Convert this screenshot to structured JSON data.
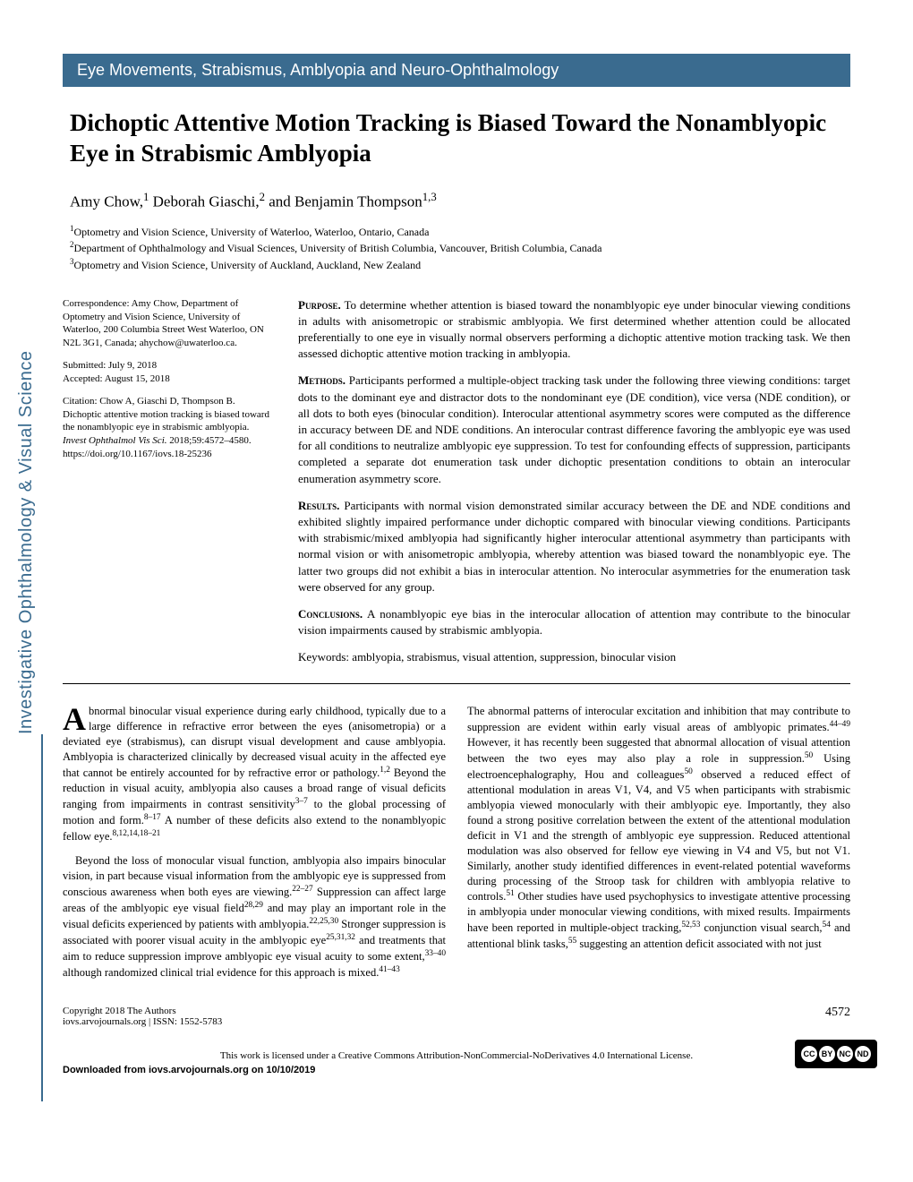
{
  "section_header": "Eye Movements, Strabismus, Amblyopia and Neuro-Ophthalmology",
  "title": "Dichoptic Attentive Motion Tracking is Biased Toward the Nonamblyopic Eye in Strabismic Amblyopia",
  "authors_html": "Amy Chow,<sup>1</sup> Deborah Giaschi,<sup>2</sup> and Benjamin Thompson<sup>1,3</sup>",
  "affiliations": [
    "<sup>1</sup>Optometry and Vision Science, University of Waterloo, Waterloo, Ontario, Canada",
    "<sup>2</sup>Department of Ophthalmology and Visual Sciences, University of British Columbia, Vancouver, British Columbia, Canada",
    "<sup>3</sup>Optometry and Vision Science, University of Auckland, Auckland, New Zealand"
  ],
  "correspondence": "Correspondence: Amy Chow, Department of Optometry and Vision Science, University of Waterloo, 200 Columbia Street West Waterloo, ON N2L 3G1, Canada; ahychow@uwaterloo.ca.",
  "submitted": "Submitted: July 9, 2018",
  "accepted": "Accepted: August 15, 2018",
  "citation": "Citation: Chow A, Giaschi D, Thompson B. Dichoptic attentive motion tracking is biased toward the nonamblyopic eye in strabismic amblyopia. <i>Invest Ophthalmol Vis Sci.</i> 2018;59:4572–4580. https://doi.org/10.1167/iovs.18-25236",
  "abstract": {
    "purpose": "To determine whether attention is biased toward the nonamblyopic eye under binocular viewing conditions in adults with anisometropic or strabismic amblyopia. We first determined whether attention could be allocated preferentially to one eye in visually normal observers performing a dichoptic attentive motion tracking task. We then assessed dichoptic attentive motion tracking in amblyopia.",
    "methods": "Participants performed a multiple-object tracking task under the following three viewing conditions: target dots to the dominant eye and distractor dots to the nondominant eye (DE condition), vice versa (NDE condition), or all dots to both eyes (binocular condition). Interocular attentional asymmetry scores were computed as the difference in accuracy between DE and NDE conditions. An interocular contrast difference favoring the amblyopic eye was used for all conditions to neutralize amblyopic eye suppression. To test for confounding effects of suppression, participants completed a separate dot enumeration task under dichoptic presentation conditions to obtain an interocular enumeration asymmetry score.",
    "results": "Participants with normal vision demonstrated similar accuracy between the DE and NDE conditions and exhibited slightly impaired performance under dichoptic compared with binocular viewing conditions. Participants with strabismic/mixed amblyopia had significantly higher interocular attentional asymmetry than participants with normal vision or with anisometropic amblyopia, whereby attention was biased toward the nonamblyopic eye. The latter two groups did not exhibit a bias in interocular attention. No interocular asymmetries for the enumeration task were observed for any group.",
    "conclusions": "A nonamblyopic eye bias in the interocular allocation of attention may contribute to the binocular vision impairments caused by strabismic amblyopia."
  },
  "keywords": "Keywords: amblyopia, strabismus, visual attention, suppression, binocular vision",
  "body": {
    "col1_p1": "bnormal binocular visual experience during early childhood, typically due to a large difference in refractive error between the eyes (anisometropia) or a deviated eye (strabismus), can disrupt visual development and cause amblyopia. Amblyopia is characterized clinically by decreased visual acuity in the affected eye that cannot be entirely accounted for by refractive error or pathology.<sup>1,2</sup> Beyond the reduction in visual acuity, amblyopia also causes a broad range of visual deficits ranging from impairments in contrast sensitivity<sup>3–7</sup> to the global processing of motion and form.<sup>8–17</sup> A number of these deficits also extend to the nonamblyopic fellow eye.<sup>8,12,14,18–21</sup>",
    "col1_p2": "Beyond the loss of monocular visual function, amblyopia also impairs binocular vision, in part because visual information from the amblyopic eye is suppressed from conscious awareness when both eyes are viewing.<sup>22–27</sup> Suppression can affect large areas of the amblyopic eye visual field<sup>28,29</sup> and may play an important role in the visual deficits experienced by patients with amblyopia.<sup>22,25,30</sup> Stronger suppression is associated with poorer visual acuity in the amblyopic eye<sup>25,31,32</sup> and treatments that aim to reduce suppression improve amblyopic eye visual acuity to some extent,<sup>33–40</sup> although randomized clinical trial evidence for this approach is mixed.<sup>41–43</sup>",
    "col2_p1": "The abnormal patterns of interocular excitation and inhibition that may contribute to suppression are evident within early visual areas of amblyopic primates.<sup>44–49</sup> However, it has recently been suggested that abnormal allocation of visual attention between the two eyes may also play a role in suppression.<sup>50</sup> Using electroencephalography, Hou and colleagues<sup>50</sup> observed a reduced effect of attentional modulation in areas V1, V4, and V5 when participants with strabismic amblyopia viewed monocularly with their amblyopic eye. Importantly, they also found a strong positive correlation between the extent of the attentional modulation deficit in V1 and the strength of amblyopic eye suppression. Reduced attentional modulation was also observed for fellow eye viewing in V4 and V5, but not V1. Similarly, another study identified differences in event-related potential waveforms during processing of the Stroop task for children with amblyopia relative to controls.<sup>51</sup> Other studies have used psychophysics to investigate attentive processing in amblyopia under monocular viewing conditions, with mixed results. Impairments have been reported in multiple-object tracking,<sup>52,53</sup> conjunction visual search,<sup>54</sup> and attentional blink tasks,<sup>55</sup> suggesting an attention deficit associated with not just"
  },
  "vertical_label": "Investigative Ophthalmology & Visual Science",
  "footer": {
    "copyright": "Copyright 2018 The Authors",
    "issn": "iovs.arvojournals.org | ISSN: 1552-5783",
    "page": "4572"
  },
  "license_text": "This work is licensed under a Creative Commons Attribution-NonCommercial-NoDerivatives 4.0 International License.",
  "download_note": "Downloaded from iovs.arvojournals.org on 10/10/2019",
  "colors": {
    "header_bg": "#3a6b8f",
    "text": "#000000"
  }
}
